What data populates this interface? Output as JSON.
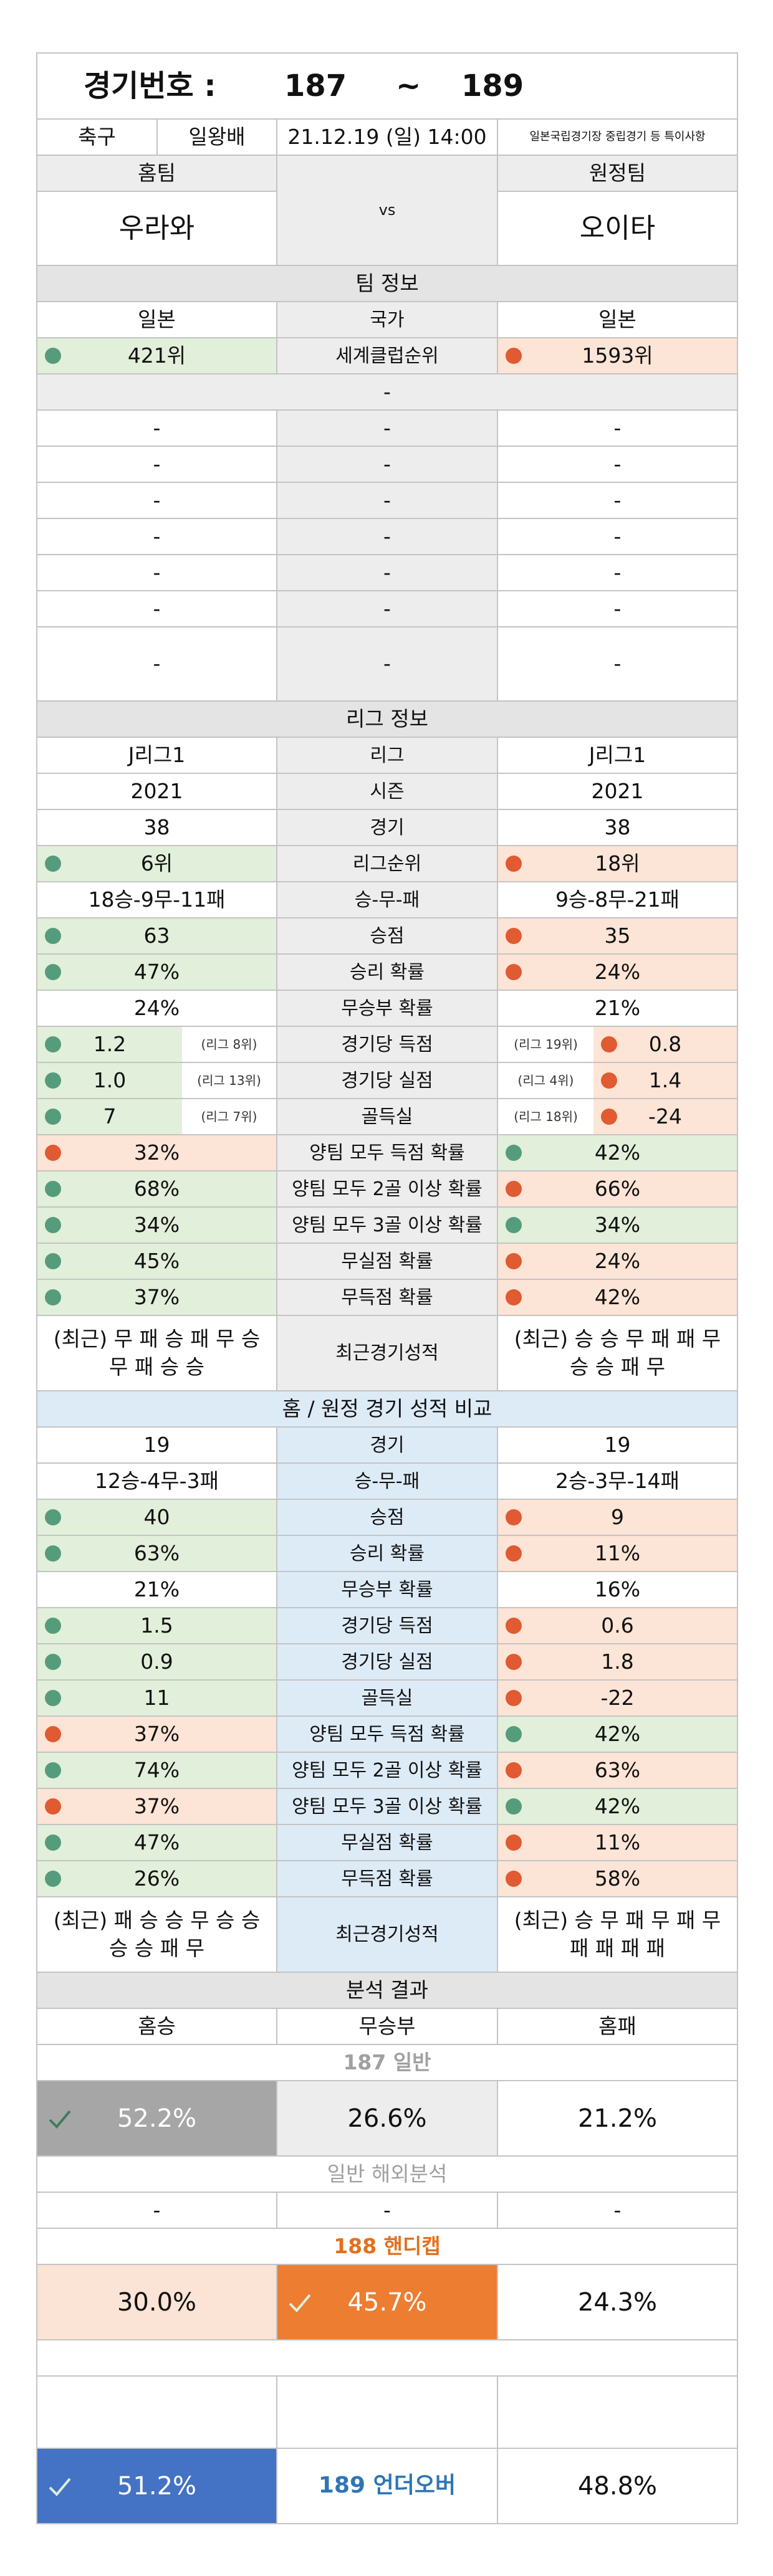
{
  "header": {
    "label": "경기번호 :",
    "from": "187",
    "sep": "~",
    "to": "189"
  },
  "match": {
    "sport": "축구",
    "league": "일왕배",
    "datetime": "21.12.19 (일) 14:00",
    "note": "일본국립경기장 중립경기 등 특이사항"
  },
  "teams": {
    "home_label": "홈팀",
    "away_label": "원정팀",
    "home": "우라와",
    "vs": "vs",
    "away": "오이타"
  },
  "team_info": {
    "title": "팀 정보",
    "rows": [
      {
        "home": "일본",
        "label": "국가",
        "away": "일본"
      },
      {
        "home": "421위",
        "label": "세계클럽순위",
        "away": "1593위",
        "home_tone": "green",
        "away_tone": "red"
      }
    ],
    "divider": "-",
    "extra_rows": [
      {
        "home": "-",
        "label": "-",
        "away": "-"
      },
      {
        "home": "-",
        "label": "-",
        "away": "-"
      },
      {
        "home": "-",
        "label": "-",
        "away": "-"
      },
      {
        "home": "-",
        "label": "-",
        "away": "-"
      },
      {
        "home": "-",
        "label": "-",
        "away": "-"
      },
      {
        "home": "-",
        "label": "-",
        "away": "-"
      },
      {
        "home": "-",
        "label": "-",
        "away": "-"
      }
    ]
  },
  "league_info": {
    "title": "리그 정보",
    "rows": [
      {
        "home": "J리그1",
        "label": "리그",
        "away": "J리그1"
      },
      {
        "home": "2021",
        "label": "시즌",
        "away": "2021"
      },
      {
        "home": "38",
        "label": "경기",
        "away": "38"
      },
      {
        "home": "6위",
        "label": "리그순위",
        "away": "18위",
        "home_tone": "green",
        "away_tone": "red"
      },
      {
        "home": "18승-9무-11패",
        "label": "승-무-패",
        "away": "9승-8무-21패"
      },
      {
        "home": "63",
        "label": "승점",
        "away": "35",
        "home_tone": "green",
        "away_tone": "red"
      },
      {
        "home": "47%",
        "label": "승리 확률",
        "away": "24%",
        "home_tone": "green",
        "away_tone": "red"
      },
      {
        "home": "24%",
        "label": "무승부 확률",
        "away": "21%"
      },
      {
        "home": "1.2",
        "home_rank": "(리그 8위)",
        "label": "경기당 득점",
        "away": "0.8",
        "away_rank": "(리그 19위)",
        "home_tone": "green",
        "away_tone": "red"
      },
      {
        "home": "1.0",
        "home_rank": "(리그 13위)",
        "label": "경기당 실점",
        "away": "1.4",
        "away_rank": "(리그 4위)",
        "home_tone": "green",
        "away_tone": "red"
      },
      {
        "home": "7",
        "home_rank": "(리그 7위)",
        "label": "골득실",
        "away": "-24",
        "away_rank": "(리그 18위)",
        "home_tone": "green",
        "away_tone": "red"
      },
      {
        "home": "32%",
        "label": "양팀 모두 득점 확률",
        "away": "42%",
        "home_tone": "red",
        "away_tone": "green"
      },
      {
        "home": "68%",
        "label": "양팀 모두 2골 이상 확률",
        "away": "66%",
        "home_tone": "green",
        "away_tone": "red"
      },
      {
        "home": "34%",
        "label": "양팀 모두 3골 이상 확률",
        "away": "34%",
        "home_tone": "green",
        "away_tone": "green"
      },
      {
        "home": "45%",
        "label": "무실점 확률",
        "away": "24%",
        "home_tone": "green",
        "away_tone": "red"
      },
      {
        "home": "37%",
        "label": "무득점 확률",
        "away": "42%",
        "home_tone": "green",
        "away_tone": "red"
      }
    ],
    "recent": {
      "home": "(최근) 무 패 승 패 무 승 무 패 승 승",
      "label": "최근경기성적",
      "away": "(최근) 승 승 무 패 패 무 승 승 패 무"
    }
  },
  "compare": {
    "title": "홈 / 원정 경기 성적 비교",
    "rows": [
      {
        "home": "19",
        "label": "경기",
        "away": "19"
      },
      {
        "home": "12승-4무-3패",
        "label": "승-무-패",
        "away": "2승-3무-14패"
      },
      {
        "home": "40",
        "label": "승점",
        "away": "9",
        "home_tone": "green",
        "away_tone": "red"
      },
      {
        "home": "63%",
        "label": "승리 확률",
        "away": "11%",
        "home_tone": "green",
        "away_tone": "red"
      },
      {
        "home": "21%",
        "label": "무승부 확률",
        "away": "16%"
      },
      {
        "home": "1.5",
        "label": "경기당 득점",
        "away": "0.6",
        "home_tone": "green",
        "away_tone": "red"
      },
      {
        "home": "0.9",
        "label": "경기당 실점",
        "away": "1.8",
        "home_tone": "green",
        "away_tone": "red"
      },
      {
        "home": "11",
        "label": "골득실",
        "away": "-22",
        "home_tone": "green",
        "away_tone": "red"
      },
      {
        "home": "37%",
        "label": "양팀 모두 득점 확률",
        "away": "42%",
        "home_tone": "red",
        "away_tone": "green"
      },
      {
        "home": "74%",
        "label": "양팀 모두 2골 이상 확률",
        "away": "63%",
        "home_tone": "green",
        "away_tone": "red"
      },
      {
        "home": "37%",
        "label": "양팀 모두 3골 이상 확률",
        "away": "42%",
        "home_tone": "red",
        "away_tone": "green"
      },
      {
        "home": "47%",
        "label": "무실점 확률",
        "away": "11%",
        "home_tone": "green",
        "away_tone": "red"
      },
      {
        "home": "26%",
        "label": "무득점 확률",
        "away": "58%",
        "home_tone": "green",
        "away_tone": "red"
      }
    ],
    "recent": {
      "home": "(최근) 패 승 승 무 승 승 승 승 패 무",
      "label": "최근경기성적",
      "away": "(최근) 승 무 패 무 패 무 패 패 패 패"
    }
  },
  "analysis": {
    "title": "분석 결과",
    "headers": [
      "홈승",
      "무승부",
      "홈패"
    ],
    "general": {
      "title": "187 일반",
      "values": [
        "52.2%",
        "26.6%",
        "21.2%"
      ],
      "pick": 0
    },
    "overseas": {
      "title": "일반 해외분석",
      "values": [
        "-",
        "-",
        "-"
      ]
    },
    "handicap": {
      "title": "188 핸디캡",
      "values": [
        "30.0%",
        "45.7%",
        "24.3%"
      ],
      "pick": 1
    },
    "underover": {
      "title": "189 언더오버",
      "values": [
        "51.2%",
        "48.8%"
      ],
      "pick": 0
    }
  }
}
